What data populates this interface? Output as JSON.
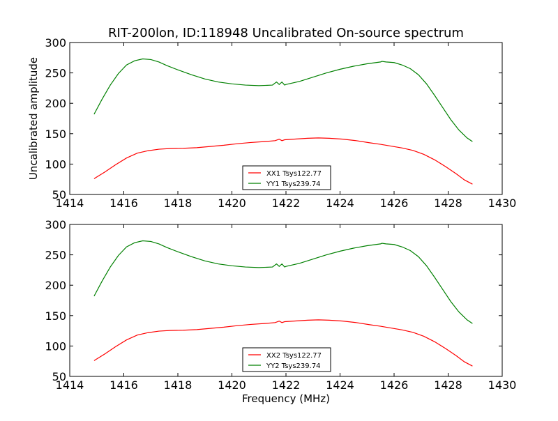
{
  "figure": {
    "title": "RIT-200lon, ID:118948 Uncalibrated On-source spectrum"
  },
  "chart_data": [
    {
      "type": "line",
      "title": "RIT-200lon, ID:118948 Uncalibrated On-source spectrum",
      "xlabel": "",
      "ylabel": "Uncalibrated amplitude",
      "xlim": [
        1414,
        1430
      ],
      "ylim": [
        50,
        300
      ],
      "xticks": [
        1414,
        1416,
        1418,
        1420,
        1422,
        1424,
        1426,
        1428,
        1430
      ],
      "yticks": [
        50,
        100,
        150,
        200,
        250,
        300
      ],
      "grid": false,
      "legend": "lower-center",
      "series": [
        {
          "name": "XX1 Tsys122.77",
          "color": "#ff0000",
          "x": [
            1414.9,
            1415.3,
            1415.7,
            1416.1,
            1416.5,
            1416.9,
            1417.3,
            1417.7,
            1418.2,
            1418.7,
            1419.2,
            1419.7,
            1420.2,
            1420.7,
            1421.2,
            1421.6,
            1421.75,
            1421.85,
            1421.95,
            1422.3,
            1422.8,
            1423.2,
            1423.6,
            1424.1,
            1424.6,
            1425.1,
            1425.5,
            1425.9,
            1426.3,
            1426.7,
            1427.1,
            1427.5,
            1427.9,
            1428.3,
            1428.6,
            1428.9
          ],
          "y": [
            76,
            87,
            99,
            110,
            118,
            122,
            124.5,
            125.5,
            126,
            127,
            129,
            131,
            133.5,
            135.5,
            137,
            138.5,
            141,
            138.5,
            140,
            141,
            142.5,
            143,
            142.5,
            141,
            138.5,
            135,
            132.5,
            129.5,
            126.5,
            122.5,
            116,
            107,
            96,
            84,
            74,
            67
          ]
        },
        {
          "name": "YY1 Tsys239.74",
          "color": "#008000",
          "x": [
            1414.9,
            1415.2,
            1415.5,
            1415.8,
            1416.1,
            1416.4,
            1416.7,
            1417.0,
            1417.3,
            1417.6,
            1418.0,
            1418.5,
            1419.0,
            1419.5,
            1420.0,
            1420.5,
            1421.0,
            1421.5,
            1421.65,
            1421.75,
            1421.85,
            1421.95,
            1422.0,
            1422.5,
            1423.0,
            1423.5,
            1424.0,
            1424.5,
            1425.0,
            1425.5,
            1425.55,
            1425.7,
            1426.0,
            1426.3,
            1426.6,
            1426.9,
            1427.2,
            1427.5,
            1427.8,
            1428.1,
            1428.4,
            1428.7,
            1428.9
          ],
          "y": [
            182,
            207,
            230,
            249,
            263,
            270,
            273,
            272,
            268,
            262,
            255,
            247,
            240,
            235,
            232,
            230,
            229,
            230,
            235,
            231,
            235,
            230,
            231,
            236,
            243,
            250,
            256,
            261,
            265,
            268,
            269,
            268,
            267,
            263,
            257,
            247,
            232,
            213,
            193,
            173,
            156,
            143,
            137
          ]
        }
      ]
    },
    {
      "type": "line",
      "title": "",
      "xlabel": "Frequency (MHz)",
      "ylabel": "",
      "xlim": [
        1414,
        1430
      ],
      "ylim": [
        50,
        300
      ],
      "xticks": [
        1414,
        1416,
        1418,
        1420,
        1422,
        1424,
        1426,
        1428,
        1430
      ],
      "yticks": [
        50,
        100,
        150,
        200,
        250,
        300
      ],
      "grid": false,
      "legend": "lower-center",
      "series": [
        {
          "name": "XX2 Tsys122.77",
          "color": "#ff0000",
          "x": [
            1414.9,
            1415.3,
            1415.7,
            1416.1,
            1416.5,
            1416.9,
            1417.3,
            1417.7,
            1418.2,
            1418.7,
            1419.2,
            1419.7,
            1420.2,
            1420.7,
            1421.2,
            1421.6,
            1421.75,
            1421.85,
            1421.95,
            1422.3,
            1422.8,
            1423.2,
            1423.6,
            1424.1,
            1424.6,
            1425.1,
            1425.5,
            1425.9,
            1426.3,
            1426.7,
            1427.1,
            1427.5,
            1427.9,
            1428.3,
            1428.6,
            1428.9
          ],
          "y": [
            76,
            87,
            99,
            110,
            118,
            122,
            124.5,
            125.5,
            126,
            127,
            129,
            131,
            133.5,
            135.5,
            137,
            138.5,
            141,
            138.5,
            140,
            141,
            142.5,
            143,
            142.5,
            141,
            138.5,
            135,
            132.5,
            129.5,
            126.5,
            122.5,
            116,
            107,
            96,
            84,
            74,
            67
          ]
        },
        {
          "name": "YY2 Tsys239.74",
          "color": "#008000",
          "x": [
            1414.9,
            1415.2,
            1415.5,
            1415.8,
            1416.1,
            1416.4,
            1416.7,
            1417.0,
            1417.3,
            1417.6,
            1418.0,
            1418.5,
            1419.0,
            1419.5,
            1420.0,
            1420.5,
            1421.0,
            1421.5,
            1421.65,
            1421.75,
            1421.85,
            1421.95,
            1422.0,
            1422.5,
            1423.0,
            1423.5,
            1424.0,
            1424.5,
            1425.0,
            1425.5,
            1425.55,
            1425.7,
            1426.0,
            1426.3,
            1426.6,
            1426.9,
            1427.2,
            1427.5,
            1427.8,
            1428.1,
            1428.4,
            1428.7,
            1428.9
          ],
          "y": [
            182,
            207,
            230,
            249,
            263,
            270,
            273,
            272,
            268,
            262,
            255,
            247,
            240,
            235,
            232,
            230,
            229,
            230,
            235,
            231,
            235,
            230,
            231,
            236,
            243,
            250,
            256,
            261,
            265,
            268,
            269,
            268,
            267,
            263,
            257,
            247,
            232,
            213,
            193,
            173,
            156,
            143,
            137
          ]
        }
      ]
    }
  ]
}
